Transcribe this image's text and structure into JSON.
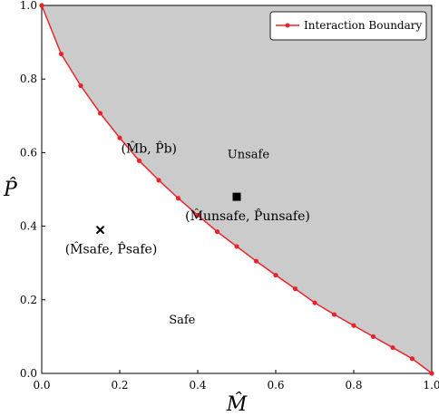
{
  "chart_data": {
    "type": "line",
    "title": "",
    "xlabel": "M̂",
    "ylabel": "P̂",
    "xlim": [
      0,
      1
    ],
    "ylim": [
      0,
      1
    ],
    "xticks": [
      "0.0",
      "0.2",
      "0.4",
      "0.6",
      "0.8",
      "1.0"
    ],
    "yticks": [
      "0.0",
      "0.2",
      "0.4",
      "0.6",
      "0.8",
      "1.0"
    ],
    "grid": false,
    "legend_position": "top-right",
    "series": [
      {
        "name": "Interaction Boundary",
        "color": "#e8232b",
        "x": [
          0.0,
          0.05,
          0.1,
          0.15,
          0.2,
          0.25,
          0.3,
          0.35,
          0.4,
          0.45,
          0.5,
          0.55,
          0.6,
          0.65,
          0.7,
          0.75,
          0.8,
          0.85,
          0.9,
          0.95,
          1.0
        ],
        "y": [
          1.0,
          0.868,
          0.782,
          0.707,
          0.64,
          0.578,
          0.525,
          0.476,
          0.43,
          0.385,
          0.345,
          0.305,
          0.267,
          0.23,
          0.192,
          0.16,
          0.13,
          0.1,
          0.07,
          0.04,
          0.0
        ]
      }
    ],
    "shaded_region": {
      "label": "Unsafe",
      "color": "#cbcbcb"
    },
    "annotations": [
      {
        "name": "safe-label",
        "text": "Safe",
        "x": 0.36,
        "y": 0.135
      },
      {
        "name": "unsafe-label",
        "text": "Unsafe",
        "x": 0.53,
        "y": 0.585
      },
      {
        "name": "boundary-point-label",
        "text": "(M̂b, P̂b)",
        "x": 0.275,
        "y": 0.6,
        "color": "#e8232b"
      }
    ],
    "points": [
      {
        "name": "unsafe-point",
        "marker": "square",
        "x": 0.5,
        "y": 0.48,
        "label": "(M̂unsafe, P̂unsafe)"
      },
      {
        "name": "safe-point",
        "marker": "x",
        "x": 0.15,
        "y": 0.39,
        "label": "(M̂safe, P̂safe)"
      }
    ]
  }
}
